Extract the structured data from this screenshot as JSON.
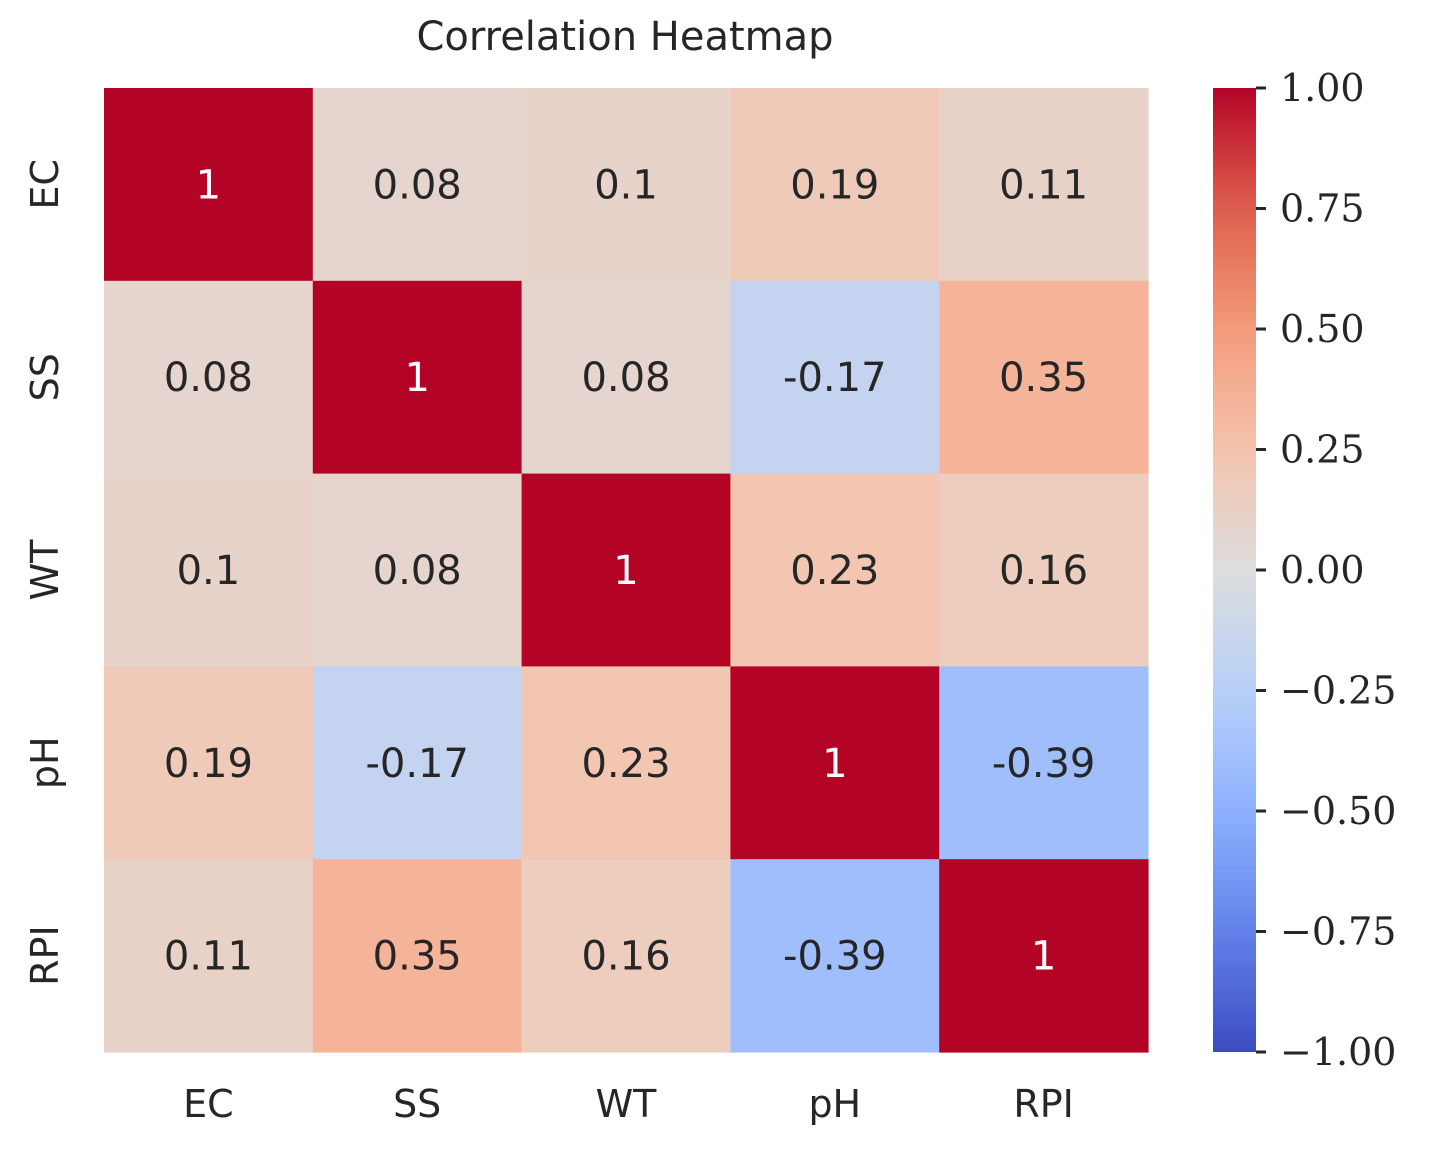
{
  "chart_data": {
    "type": "heatmap",
    "title": "Correlation Heatmap",
    "xlabel": "",
    "ylabel": "",
    "x_categories": [
      "EC",
      "SS",
      "WT",
      "pH",
      "RPI"
    ],
    "y_categories": [
      "EC",
      "SS",
      "WT",
      "pH",
      "RPI"
    ],
    "values": [
      [
        1.0,
        0.08,
        0.1,
        0.19,
        0.11
      ],
      [
        0.08,
        1.0,
        0.08,
        -0.17,
        0.35
      ],
      [
        0.1,
        0.08,
        1.0,
        0.23,
        0.16
      ],
      [
        0.19,
        -0.17,
        0.23,
        1.0,
        -0.39
      ],
      [
        0.11,
        0.35,
        0.16,
        -0.39,
        1.0
      ]
    ],
    "annotations": [
      [
        "1",
        "0.08",
        "0.1",
        "0.19",
        "0.11"
      ],
      [
        "0.08",
        "1",
        "0.08",
        "-0.17",
        "0.35"
      ],
      [
        "0.1",
        "0.08",
        "1",
        "0.23",
        "0.16"
      ],
      [
        "0.19",
        "-0.17",
        "0.23",
        "1",
        "-0.39"
      ],
      [
        "0.11",
        "0.35",
        "0.16",
        "-0.39",
        "1"
      ]
    ],
    "colormap": "coolwarm",
    "vmin": -1.0,
    "vmax": 1.0,
    "colorbar": {
      "ticks": [
        1.0,
        0.75,
        0.5,
        0.25,
        0.0,
        -0.25,
        -0.5,
        -0.75,
        -1.0
      ],
      "tick_labels": [
        "1.00",
        "0.75",
        "0.50",
        "0.25",
        "0.00",
        "−0.25",
        "−0.50",
        "−0.75",
        "−1.00"
      ],
      "placement": "right"
    },
    "grid": false
  }
}
